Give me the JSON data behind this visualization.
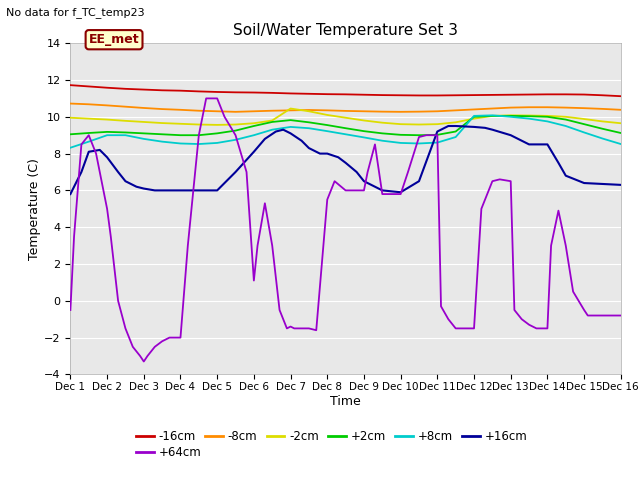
{
  "title": "Soil/Water Temperature Set 3",
  "no_data_label": "No data for f_TC_temp23",
  "ee_met_label": "EE_met",
  "xlabel": "Time",
  "ylabel": "Temperature (C)",
  "xlim": [
    0,
    15
  ],
  "ylim": [
    -4,
    14
  ],
  "yticks": [
    -4,
    -2,
    0,
    2,
    4,
    6,
    8,
    10,
    12,
    14
  ],
  "xtick_labels": [
    "Dec 1",
    "Dec 2",
    "Dec 3",
    "Dec 4",
    "Dec 5",
    "Dec 6",
    "Dec 7",
    "Dec 8",
    "Dec 9",
    "Dec 10",
    "Dec 11",
    "Dec 12",
    "Dec 13",
    "Dec 14",
    "Dec 15",
    "Dec 16"
  ],
  "plot_bg_color": "#e8e8e8",
  "fig_bg_color": "#ffffff",
  "grid_color": "#ffffff",
  "series": {
    "-16cm": {
      "color": "#cc0000",
      "lw": 1.3,
      "data_x": [
        0,
        0.5,
        1,
        1.5,
        2,
        2.5,
        3,
        3.5,
        4,
        4.5,
        5,
        5.5,
        6,
        6.5,
        7,
        7.5,
        8,
        8.5,
        9,
        9.5,
        10,
        10.5,
        11,
        11.5,
        12,
        12.5,
        13,
        13.5,
        14,
        14.5,
        15
      ],
      "data_y": [
        11.72,
        11.65,
        11.58,
        11.52,
        11.48,
        11.44,
        11.42,
        11.38,
        11.35,
        11.33,
        11.32,
        11.3,
        11.27,
        11.25,
        11.23,
        11.22,
        11.2,
        11.18,
        11.17,
        11.16,
        11.16,
        11.17,
        11.18,
        11.19,
        11.2,
        11.21,
        11.22,
        11.22,
        11.21,
        11.17,
        11.12
      ]
    },
    "-8cm": {
      "color": "#ff8c00",
      "lw": 1.3,
      "data_x": [
        0,
        0.5,
        1,
        1.5,
        2,
        2.5,
        3,
        3.5,
        4,
        4.5,
        5,
        5.5,
        6,
        6.5,
        7,
        7.5,
        8,
        8.5,
        9,
        9.5,
        10,
        10.5,
        11,
        11.5,
        12,
        12.5,
        13,
        13.5,
        14,
        14.5,
        15
      ],
      "data_y": [
        10.72,
        10.68,
        10.62,
        10.55,
        10.48,
        10.42,
        10.38,
        10.33,
        10.3,
        10.27,
        10.3,
        10.33,
        10.35,
        10.37,
        10.35,
        10.32,
        10.3,
        10.28,
        10.27,
        10.28,
        10.3,
        10.35,
        10.4,
        10.45,
        10.5,
        10.52,
        10.52,
        10.5,
        10.47,
        10.43,
        10.38
      ]
    },
    "-2cm": {
      "color": "#dddd00",
      "lw": 1.3,
      "data_x": [
        0,
        0.5,
        1,
        1.5,
        2,
        2.5,
        3,
        3.5,
        4,
        4.5,
        5,
        5.5,
        6,
        6.5,
        7,
        7.5,
        8,
        8.5,
        9,
        9.5,
        10,
        10.5,
        11,
        11.5,
        12,
        12.5,
        13,
        13.5,
        14,
        14.5,
        15
      ],
      "data_y": [
        9.95,
        9.9,
        9.85,
        9.78,
        9.72,
        9.66,
        9.62,
        9.58,
        9.56,
        9.58,
        9.65,
        9.8,
        10.45,
        10.3,
        10.1,
        9.95,
        9.8,
        9.68,
        9.6,
        9.58,
        9.6,
        9.7,
        9.9,
        10.05,
        10.08,
        10.07,
        10.05,
        10.0,
        9.88,
        9.75,
        9.65
      ]
    },
    "+2cm": {
      "color": "#00cc00",
      "lw": 1.3,
      "data_x": [
        0,
        0.5,
        1,
        1.5,
        2,
        2.5,
        3,
        3.5,
        4,
        4.5,
        5,
        5.5,
        6,
        6.5,
        7,
        7.5,
        8,
        8.5,
        9,
        9.5,
        10,
        10.5,
        11,
        11.5,
        12,
        12.5,
        13,
        13.5,
        14,
        14.5,
        15
      ],
      "data_y": [
        9.05,
        9.12,
        9.18,
        9.15,
        9.1,
        9.05,
        9.0,
        9.0,
        9.1,
        9.25,
        9.5,
        9.72,
        9.82,
        9.7,
        9.55,
        9.38,
        9.22,
        9.1,
        9.02,
        9.0,
        9.02,
        9.2,
        10.0,
        10.05,
        10.05,
        10.03,
        10.0,
        9.85,
        9.6,
        9.35,
        9.12
      ]
    },
    "+8cm": {
      "color": "#00cccc",
      "lw": 1.3,
      "data_x": [
        0,
        0.5,
        1,
        1.5,
        2,
        2.5,
        3,
        3.5,
        4,
        4.5,
        5,
        5.5,
        6,
        6.5,
        7,
        7.5,
        8,
        8.5,
        9,
        9.5,
        10,
        10.5,
        11,
        11.5,
        12,
        12.5,
        13,
        13.5,
        14,
        14.5,
        15
      ],
      "data_y": [
        8.32,
        8.65,
        9.0,
        9.0,
        8.8,
        8.65,
        8.55,
        8.52,
        8.58,
        8.75,
        9.0,
        9.3,
        9.45,
        9.38,
        9.22,
        9.05,
        8.88,
        8.7,
        8.58,
        8.55,
        8.6,
        8.9,
        10.05,
        10.08,
        10.0,
        9.9,
        9.75,
        9.5,
        9.15,
        8.82,
        8.52
      ]
    },
    "+16cm": {
      "color": "#000099",
      "lw": 1.5,
      "data_x": [
        0,
        0.3,
        0.5,
        0.8,
        1,
        1.3,
        1.5,
        1.8,
        2,
        2.3,
        2.5,
        2.8,
        3,
        3.5,
        4,
        4.5,
        5,
        5.3,
        5.6,
        5.8,
        6,
        6.3,
        6.5,
        6.8,
        7,
        7.3,
        7.5,
        7.8,
        8,
        8.3,
        8.5,
        9,
        9.5,
        10,
        10.3,
        10.5,
        11,
        11.3,
        11.5,
        12,
        12.3,
        12.5,
        13,
        13.3,
        13.5,
        14,
        14.5,
        15
      ],
      "data_y": [
        5.8,
        7.0,
        8.1,
        8.2,
        7.8,
        7.0,
        6.5,
        6.2,
        6.1,
        6.0,
        6.0,
        6.0,
        6.0,
        6.0,
        6.0,
        7.0,
        8.1,
        8.8,
        9.2,
        9.3,
        9.1,
        8.7,
        8.3,
        8.0,
        8.0,
        7.8,
        7.5,
        7.0,
        6.5,
        6.2,
        6.0,
        5.9,
        6.5,
        9.2,
        9.5,
        9.5,
        9.45,
        9.4,
        9.3,
        9.0,
        8.7,
        8.5,
        8.5,
        7.5,
        6.8,
        6.4,
        6.35,
        6.3
      ]
    },
    "+64cm": {
      "color": "#9900cc",
      "lw": 1.3,
      "data_x": [
        0,
        0.1,
        0.3,
        0.5,
        0.7,
        0.9,
        1.0,
        1.1,
        1.3,
        1.5,
        1.7,
        1.9,
        2.0,
        2.1,
        2.3,
        2.5,
        2.7,
        3.0,
        3.2,
        3.4,
        3.5,
        3.7,
        4.0,
        4.2,
        4.5,
        4.8,
        5.0,
        5.1,
        5.3,
        5.5,
        5.7,
        5.9,
        6.0,
        6.1,
        6.3,
        6.5,
        6.7,
        7.0,
        7.2,
        7.5,
        7.7,
        7.9,
        8.0,
        8.1,
        8.3,
        8.5,
        8.7,
        9.0,
        9.2,
        9.5,
        9.7,
        10.0,
        10.1,
        10.3,
        10.5,
        10.7,
        11.0,
        11.2,
        11.5,
        11.7,
        12.0,
        12.1,
        12.3,
        12.5,
        12.7,
        13.0,
        13.1,
        13.3,
        13.5,
        13.7,
        14.0,
        14.1,
        14.3,
        14.5,
        14.7,
        14.9,
        15.0
      ],
      "data_y": [
        -0.5,
        3.5,
        8.5,
        9.0,
        8.0,
        6.0,
        5.0,
        3.5,
        0.0,
        -1.5,
        -2.5,
        -3.0,
        -3.3,
        -3.0,
        -2.5,
        -2.2,
        -2.0,
        -2.0,
        3.0,
        7.0,
        9.0,
        11.0,
        11.0,
        10.0,
        9.0,
        7.0,
        1.1,
        3.0,
        5.3,
        3.0,
        -0.5,
        -1.5,
        -1.4,
        -1.5,
        -1.5,
        -1.5,
        -1.6,
        5.5,
        6.5,
        6.0,
        6.0,
        6.0,
        6.0,
        7.0,
        8.5,
        5.8,
        5.8,
        5.8,
        7.0,
        8.9,
        9.0,
        9.0,
        -0.3,
        -1.0,
        -1.5,
        -1.5,
        -1.5,
        5.0,
        6.5,
        6.6,
        6.5,
        -0.5,
        -1.0,
        -1.3,
        -1.5,
        -1.5,
        3.0,
        4.9,
        3.0,
        0.5,
        -0.5,
        -0.8,
        -0.8,
        -0.8,
        -0.8,
        -0.8,
        -0.8
      ]
    }
  },
  "legend_entries": [
    "-16cm",
    "-8cm",
    "-2cm",
    "+2cm",
    "+8cm",
    "+16cm",
    "+64cm"
  ]
}
